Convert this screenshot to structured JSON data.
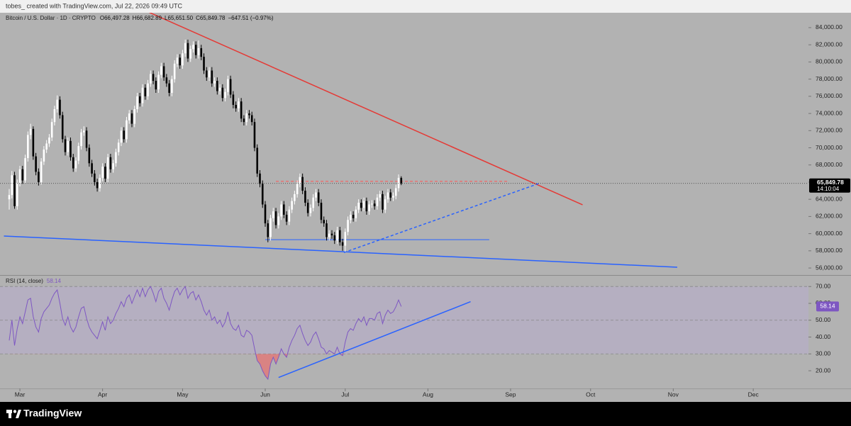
{
  "header": {
    "text": "tobes_ created with TradingView.com, Jul 22, 2026 09:49 UTC"
  },
  "footer": {
    "brand": "TradingView"
  },
  "chart_data": [
    {
      "type": "candlestick",
      "title": "Bitcoin / U.S. Dollar · 1D · CRYPTO",
      "last_labels": [
        "O66,497.28",
        "H66,682.89",
        "L65,651.50",
        "C65,849.78"
      ],
      "change_label": "−647.51 (−0.97%)",
      "last_price_label": "65,849.78",
      "countdown": "14:10:04",
      "up_color": "#ffffff",
      "down_color": "#000000",
      "xlim": [
        -3.46,
        299.7
      ],
      "xticks": [
        {
          "value": 4,
          "label": "Mar"
        },
        {
          "value": 35,
          "label": "Apr"
        },
        {
          "value": 65,
          "label": "May"
        },
        {
          "value": 96,
          "label": "Jun"
        },
        {
          "value": 126,
          "label": "Jul"
        },
        {
          "value": 157,
          "label": "Aug"
        },
        {
          "value": 188,
          "label": "Sep"
        },
        {
          "value": 218,
          "label": "Oct"
        },
        {
          "value": 249,
          "label": "Nov"
        },
        {
          "value": 279,
          "label": "Dec"
        }
      ],
      "ylim": [
        55180,
        85730
      ],
      "yticks": [
        {
          "value": 56000,
          "label": "56,000.00"
        },
        {
          "value": 58000,
          "label": "58,000.00"
        },
        {
          "value": 60000,
          "label": "60,000.00"
        },
        {
          "value": 62000,
          "label": "62,000.00"
        },
        {
          "value": 64000,
          "label": "64,000.00"
        },
        {
          "value": 66000,
          "label": "66,000.00"
        },
        {
          "value": 68000,
          "label": "68,000.00"
        },
        {
          "value": 70000,
          "label": "70,000.00"
        },
        {
          "value": 72000,
          "label": "72,000.00"
        },
        {
          "value": 74000,
          "label": "74,000.00"
        },
        {
          "value": 76000,
          "label": "76,000.00"
        },
        {
          "value": 78000,
          "label": "78,000.00"
        },
        {
          "value": 80000,
          "label": "80,000.00"
        },
        {
          "value": 82000,
          "label": "82,000.00"
        },
        {
          "value": 84000,
          "label": "84,000.00"
        }
      ],
      "trendlines": [
        {
          "x": [
            51,
            215
          ],
          "y": [
            85980,
            63356
          ],
          "color": "#e53935",
          "style": "solid"
        },
        {
          "x": [
            -2,
            250.5
          ],
          "y": [
            59723,
            56090
          ],
          "color": "#2962ff",
          "style": "solid"
        },
        {
          "x": [
            96,
            180
          ],
          "y": [
            59300,
            59300
          ],
          "color": "#2962ff",
          "style": "thin"
        },
        {
          "x": [
            125.5,
            198.7
          ],
          "y": [
            57800,
            65850
          ],
          "color": "#2962ff",
          "style": "dashed"
        },
        {
          "x": [
            100,
            187
          ],
          "y": [
            66100,
            66100
          ],
          "color": "#e57373",
          "style": "dashed"
        }
      ],
      "candles": [
        [
          64000,
          65200,
          62800,
          64500
        ],
        [
          64500,
          67300,
          64100,
          66800
        ],
        [
          66800,
          67200,
          62900,
          63200
        ],
        [
          63200,
          66300,
          62800,
          65900
        ],
        [
          65900,
          67900,
          65500,
          67500
        ],
        [
          67500,
          67900,
          65800,
          66200
        ],
        [
          66200,
          69200,
          65900,
          68800
        ],
        [
          68800,
          71900,
          68400,
          71500
        ],
        [
          71500,
          72800,
          71000,
          72200
        ],
        [
          72200,
          72500,
          68600,
          69000
        ],
        [
          69000,
          69400,
          66800,
          67200
        ],
        [
          67200,
          67600,
          65600,
          66000
        ],
        [
          66000,
          68800,
          65700,
          68400
        ],
        [
          68400,
          70200,
          68000,
          69800
        ],
        [
          69800,
          70900,
          69400,
          70500
        ],
        [
          70500,
          71600,
          70100,
          71200
        ],
        [
          71200,
          73400,
          70800,
          73000
        ],
        [
          73000,
          74900,
          72600,
          74500
        ],
        [
          74500,
          76100,
          74100,
          75600
        ],
        [
          75600,
          76000,
          73400,
          73800
        ],
        [
          73800,
          74200,
          70600,
          71000
        ],
        [
          71000,
          71400,
          69100,
          69500
        ],
        [
          69500,
          71200,
          69100,
          70800
        ],
        [
          70800,
          71200,
          68500,
          68900
        ],
        [
          68900,
          69300,
          67200,
          67600
        ],
        [
          67600,
          68900,
          67200,
          68500
        ],
        [
          68500,
          70600,
          68100,
          70200
        ],
        [
          70200,
          72200,
          69800,
          71800
        ],
        [
          71800,
          72500,
          71400,
          72000
        ],
        [
          72000,
          72400,
          69600,
          70000
        ],
        [
          70000,
          70400,
          67800,
          68200
        ],
        [
          68200,
          68600,
          66600,
          67000
        ],
        [
          67000,
          67400,
          65600,
          66000
        ],
        [
          66000,
          66400,
          64900,
          65300
        ],
        [
          65300,
          66900,
          64900,
          66500
        ],
        [
          66500,
          68200,
          66100,
          67800
        ],
        [
          67800,
          68200,
          66000,
          66400
        ],
        [
          66400,
          69300,
          66000,
          68900
        ],
        [
          68900,
          69300,
          67100,
          67500
        ],
        [
          67500,
          68600,
          67100,
          68200
        ],
        [
          68200,
          69900,
          67800,
          69500
        ],
        [
          69500,
          71000,
          69100,
          70600
        ],
        [
          70600,
          72400,
          70200,
          72000
        ],
        [
          72000,
          72400,
          70600,
          71000
        ],
        [
          71000,
          73600,
          70600,
          73200
        ],
        [
          73200,
          74400,
          72800,
          74000
        ],
        [
          74000,
          74400,
          72400,
          72800
        ],
        [
          72800,
          74900,
          72400,
          74500
        ],
        [
          74500,
          76400,
          74100,
          76000
        ],
        [
          76000,
          76400,
          74800,
          75200
        ],
        [
          75200,
          77400,
          74800,
          77000
        ],
        [
          77000,
          77400,
          75600,
          76000
        ],
        [
          76000,
          77900,
          75600,
          77500
        ],
        [
          77500,
          79000,
          77100,
          78600
        ],
        [
          78600,
          79000,
          77400,
          77800
        ],
        [
          77800,
          78200,
          76400,
          76800
        ],
        [
          76800,
          78900,
          76400,
          78500
        ],
        [
          78500,
          79900,
          78100,
          79500
        ],
        [
          79500,
          79900,
          77800,
          78200
        ],
        [
          78200,
          78600,
          77100,
          77500
        ],
        [
          77500,
          77900,
          76000,
          76400
        ],
        [
          76400,
          78400,
          76000,
          78000
        ],
        [
          78000,
          80200,
          77600,
          79800
        ],
        [
          79800,
          80900,
          79400,
          80500
        ],
        [
          80500,
          80900,
          79200,
          79600
        ],
        [
          79600,
          81400,
          79200,
          81000
        ],
        [
          81000,
          82600,
          80600,
          82200
        ],
        [
          82200,
          82600,
          80000,
          80400
        ],
        [
          80400,
          81900,
          80000,
          81500
        ],
        [
          81500,
          82400,
          81100,
          82000
        ],
        [
          82000,
          82400,
          80400,
          80800
        ],
        [
          80800,
          82500,
          80400,
          81600
        ],
        [
          81600,
          82000,
          80200,
          80600
        ],
        [
          80600,
          81000,
          78600,
          79000
        ],
        [
          79000,
          79400,
          77800,
          78200
        ],
        [
          78200,
          79400,
          77800,
          79000
        ],
        [
          79000,
          79400,
          77100,
          77500
        ],
        [
          77500,
          78200,
          77100,
          77800
        ],
        [
          77800,
          78200,
          76200,
          76600
        ],
        [
          76600,
          77400,
          76200,
          77000
        ],
        [
          77000,
          77400,
          75400,
          75800
        ],
        [
          75800,
          76900,
          75400,
          76500
        ],
        [
          76500,
          78400,
          76100,
          78000
        ],
        [
          78000,
          78400,
          75800,
          76200
        ],
        [
          76200,
          76600,
          74600,
          75000
        ],
        [
          75000,
          75400,
          74200,
          74600
        ],
        [
          74600,
          75800,
          74200,
          75400
        ],
        [
          75400,
          75800,
          73000,
          73400
        ],
        [
          73400,
          73800,
          72600,
          73000
        ],
        [
          73000,
          74400,
          72600,
          74000
        ],
        [
          74000,
          74400,
          73400,
          73800
        ],
        [
          73800,
          74200,
          72600,
          73000
        ],
        [
          73000,
          73400,
          69600,
          70000
        ],
        [
          70000,
          70400,
          66600,
          67000
        ],
        [
          67000,
          67400,
          65400,
          65800
        ],
        [
          65800,
          66200,
          63000,
          63400
        ],
        [
          63400,
          63800,
          60800,
          61200
        ],
        [
          61200,
          61600,
          59000,
          59600
        ],
        [
          59600,
          62200,
          59200,
          61800
        ],
        [
          61800,
          63000,
          61400,
          62600
        ],
        [
          62600,
          63000,
          60600,
          61000
        ],
        [
          61000,
          62400,
          60600,
          62000
        ],
        [
          62000,
          63800,
          61600,
          63400
        ],
        [
          63400,
          63800,
          61800,
          62200
        ],
        [
          62200,
          62600,
          61000,
          61400
        ],
        [
          61400,
          63200,
          61000,
          62800
        ],
        [
          62800,
          64200,
          62400,
          63800
        ],
        [
          63800,
          65000,
          63400,
          64600
        ],
        [
          64600,
          66200,
          64200,
          65800
        ],
        [
          65800,
          67000,
          65400,
          66600
        ],
        [
          66600,
          67000,
          64600,
          65000
        ],
        [
          65000,
          65400,
          63200,
          63600
        ],
        [
          63600,
          64000,
          62000,
          62400
        ],
        [
          62400,
          63400,
          62000,
          63000
        ],
        [
          63000,
          64600,
          62600,
          64200
        ],
        [
          64200,
          65200,
          63800,
          64800
        ],
        [
          64800,
          65200,
          63200,
          63600
        ],
        [
          63600,
          64000,
          61200,
          61600
        ],
        [
          61600,
          62000,
          60800,
          61200
        ],
        [
          61200,
          61600,
          59200,
          59600
        ],
        [
          59600,
          60400,
          59200,
          60000
        ],
        [
          60000,
          60400,
          59400,
          59800
        ],
        [
          59800,
          60200,
          58800,
          59200
        ],
        [
          59200,
          60800,
          58800,
          60400
        ],
        [
          60400,
          60800,
          58600,
          59000
        ],
        [
          59000,
          59400,
          58000,
          58600
        ],
        [
          58600,
          60600,
          57900,
          60200
        ],
        [
          60200,
          62000,
          59800,
          61600
        ],
        [
          61600,
          62600,
          61200,
          62200
        ],
        [
          62200,
          62600,
          61400,
          61800
        ],
        [
          61800,
          63200,
          61400,
          62800
        ],
        [
          62800,
          64000,
          62400,
          63600
        ],
        [
          63600,
          64000,
          62600,
          63000
        ],
        [
          63000,
          64200,
          62600,
          63800
        ],
        [
          63800,
          64200,
          62200,
          62600
        ],
        [
          62600,
          63800,
          62200,
          63400
        ],
        [
          63400,
          63900,
          63000,
          63500
        ],
        [
          63500,
          63900,
          62800,
          63200
        ],
        [
          63200,
          64600,
          62800,
          64200
        ],
        [
          64200,
          65000,
          63800,
          64600
        ],
        [
          64600,
          65000,
          62400,
          62800
        ],
        [
          62800,
          64400,
          62400,
          64000
        ],
        [
          64000,
          65200,
          63600,
          64800
        ],
        [
          64800,
          65200,
          63800,
          64200
        ],
        [
          64200,
          64800,
          63800,
          64400
        ],
        [
          64400,
          65700,
          64000,
          65300
        ],
        [
          65300,
          66900,
          64900,
          66497.28
        ],
        [
          66497.28,
          66682.89,
          65651.5,
          65849.78
        ]
      ]
    },
    {
      "type": "line",
      "title": "RSI (14, close)",
      "last_label": "58.14",
      "color": "#7e57c2",
      "band_color": "#b7aec8",
      "oversold_color": "#e57373",
      "xlim": [
        -3.46,
        299.7
      ],
      "ylim": [
        9.5,
        76.4
      ],
      "yticks": [
        {
          "value": 20,
          "label": "20.00"
        },
        {
          "value": 30,
          "label": "30.00"
        },
        {
          "value": 40,
          "label": "40.00"
        },
        {
          "value": 50,
          "label": "50.00"
        },
        {
          "value": 60,
          "label": "60.00"
        },
        {
          "value": 70,
          "label": "70.00"
        }
      ],
      "levels": [
        70,
        50,
        30
      ],
      "trendlines": [
        {
          "x": [
            101,
            173
          ],
          "y": [
            16,
            61
          ],
          "color": "#2962ff",
          "style": "solid"
        }
      ],
      "values": [
        38,
        50,
        35,
        45,
        52,
        48,
        55,
        62,
        63,
        52,
        46,
        43,
        51,
        55,
        57,
        59,
        63,
        66,
        68,
        60,
        51,
        47,
        52,
        46,
        43,
        46,
        52,
        57,
        58,
        51,
        46,
        43,
        41,
        39,
        44,
        49,
        44,
        52,
        48,
        50,
        54,
        57,
        61,
        58,
        63,
        65,
        60,
        64,
        68,
        64,
        69,
        64,
        68,
        70,
        66,
        61,
        67,
        69,
        63,
        60,
        56,
        62,
        67,
        69,
        65,
        68,
        70,
        63,
        66,
        67,
        62,
        65,
        61,
        56,
        53,
        56,
        50,
        52,
        48,
        50,
        46,
        49,
        55,
        48,
        45,
        44,
        47,
        41,
        40,
        44,
        43,
        41,
        33,
        26,
        24,
        20,
        17,
        15,
        24,
        28,
        24,
        28,
        33,
        30,
        28,
        34,
        38,
        41,
        45,
        47,
        42,
        38,
        35,
        37,
        41,
        43,
        39,
        34,
        33,
        30,
        32,
        31,
        30,
        34,
        30,
        29,
        37,
        43,
        45,
        44,
        48,
        51,
        49,
        52,
        47,
        51,
        51,
        50,
        54,
        55,
        48,
        53,
        56,
        54,
        55,
        58,
        62,
        58.14
      ]
    }
  ]
}
